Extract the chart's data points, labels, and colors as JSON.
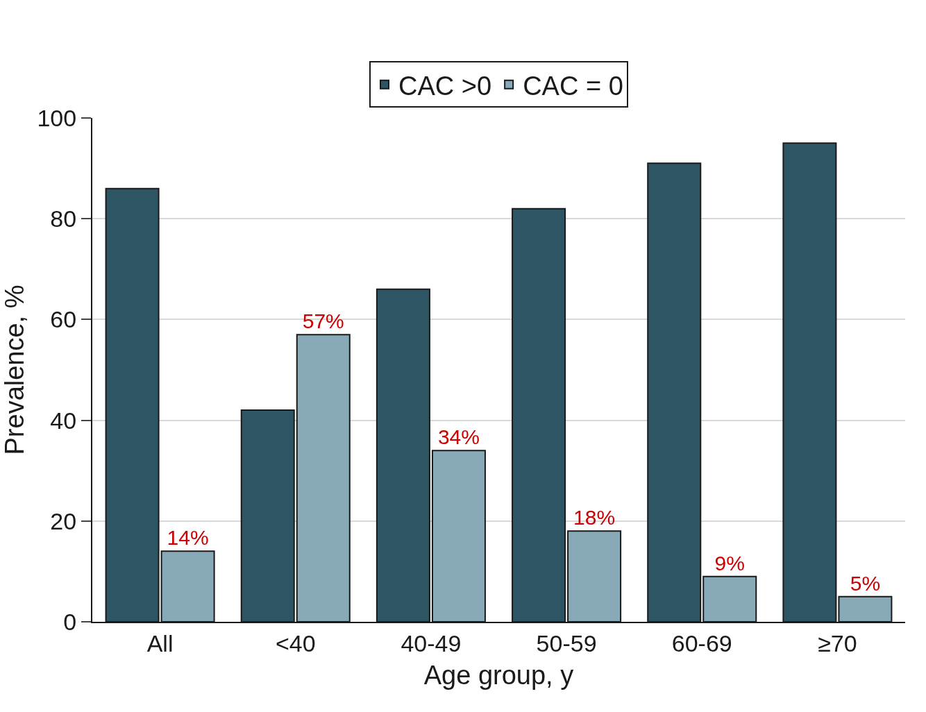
{
  "chart_data": {
    "type": "bar",
    "xlabel": "Age group, y",
    "ylabel": "Prevalence, %",
    "categories": [
      "All",
      "<40",
      "40-49",
      "50-59",
      "60-69",
      "≥70"
    ],
    "series": [
      {
        "name": "CAC >0",
        "color": "#2e5563",
        "values": [
          86,
          42,
          66,
          82,
          91,
          95
        ]
      },
      {
        "name": "CAC = 0",
        "color": "#88aab8",
        "values": [
          14,
          57,
          34,
          18,
          9,
          5
        ],
        "value_labels": [
          "14%",
          "57%",
          "34%",
          "18%",
          "9%",
          "5%"
        ]
      }
    ],
    "ylim": [
      0,
      100
    ],
    "yticks": [
      0,
      20,
      40,
      60,
      80,
      100
    ],
    "grid": "y",
    "legend": "top"
  }
}
